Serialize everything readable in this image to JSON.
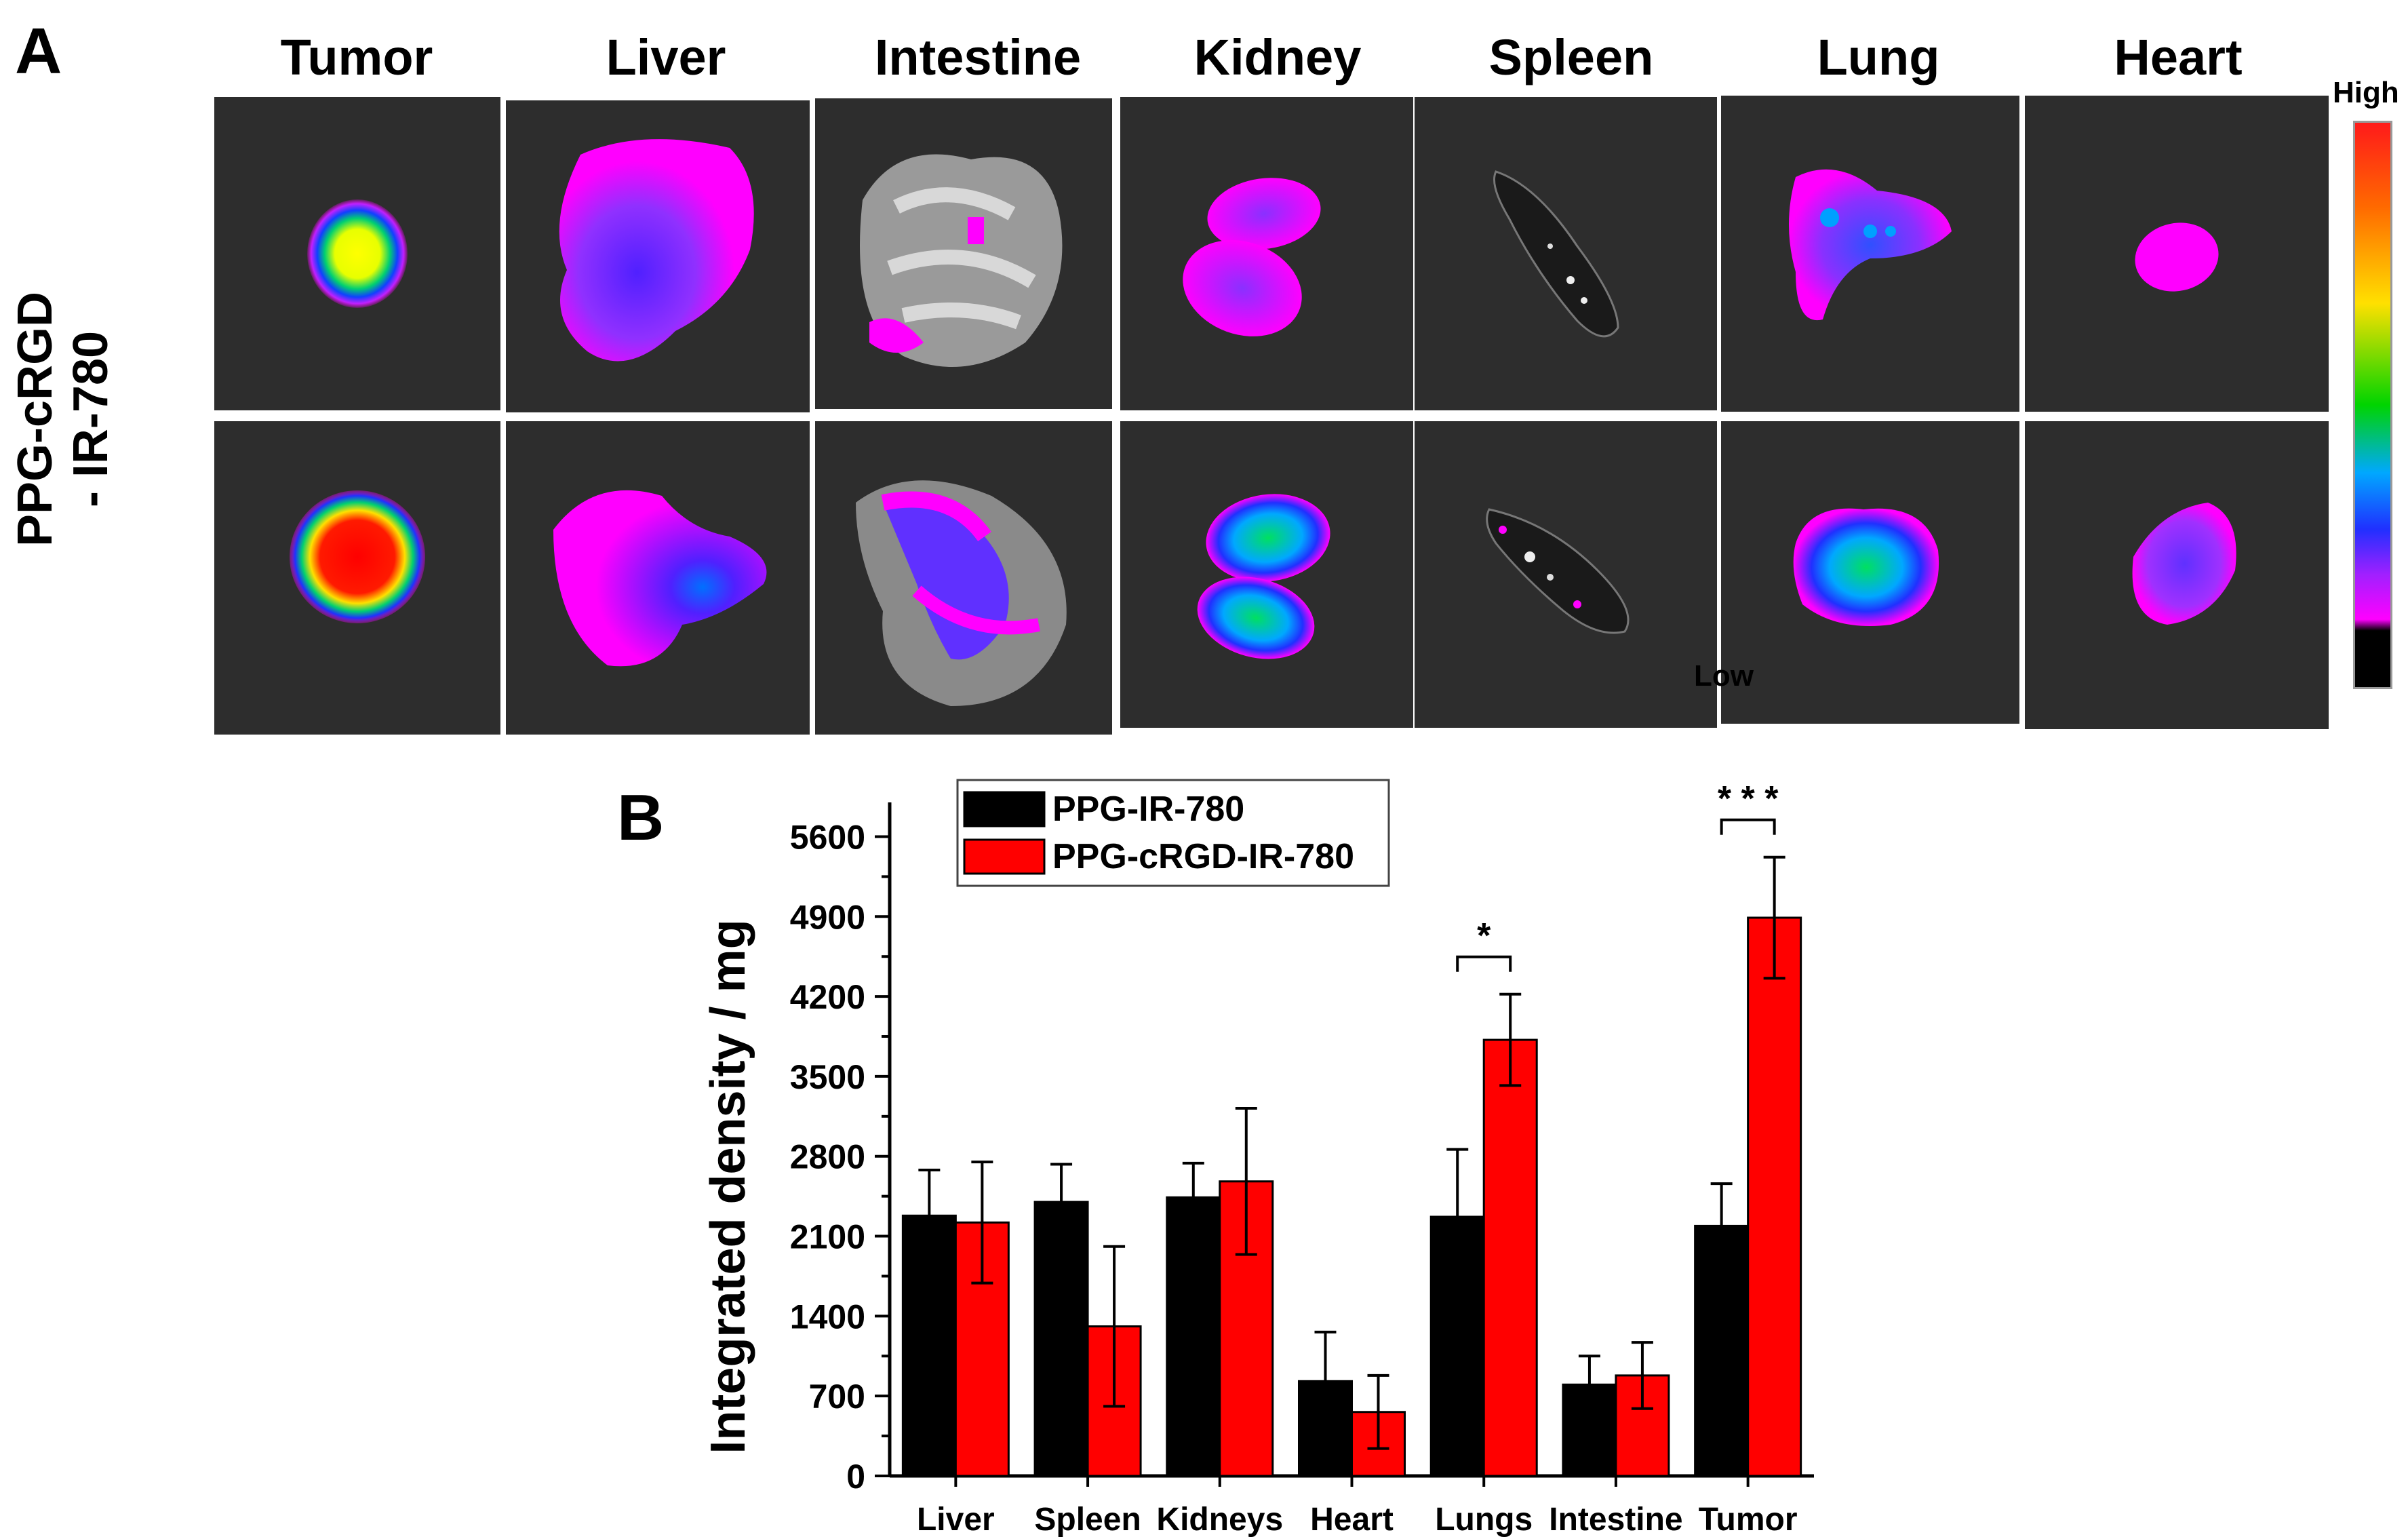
{
  "panel_a": {
    "letter": "A",
    "organs": [
      "Tumor",
      "Liver",
      "Intestine",
      "Kidney",
      "Spleen",
      "Lung",
      "Heart"
    ],
    "row_label": "PPG-cRGD\n- IR-780",
    "scale": {
      "high": "High",
      "low": "Low"
    }
  },
  "panel_b": {
    "letter": "B"
  },
  "chart_data": {
    "type": "bar",
    "categories": [
      "Liver",
      "Spleen",
      "Kidneys",
      "Heart",
      "Lungs",
      "Intestine",
      "Tumor"
    ],
    "series": [
      {
        "name": "PPG-IR-780",
        "color": "#000000",
        "values": [
          2280,
          2400,
          2440,
          830,
          2270,
          800,
          2190
        ],
        "errors": [
          400,
          330,
          300,
          430,
          590,
          250,
          370
        ]
      },
      {
        "name": "PPG-cRGD-IR-780",
        "color": "#ff0000",
        "values": [
          2220,
          1310,
          2580,
          560,
          3820,
          880,
          4890
        ],
        "errors": [
          530,
          700,
          640,
          320,
          400,
          290,
          530
        ]
      }
    ],
    "xlabel": "",
    "ylabel": "Integrated density / mg",
    "ylim": [
      0,
      5900
    ],
    "yticks": [
      0,
      700,
      1400,
      2100,
      2800,
      3500,
      4200,
      4900,
      5600
    ],
    "significance": [
      {
        "category": "Lungs",
        "label": "*"
      },
      {
        "category": "Tumor",
        "label": "* * *"
      }
    ],
    "legend_position": "top-left",
    "grid": false
  }
}
